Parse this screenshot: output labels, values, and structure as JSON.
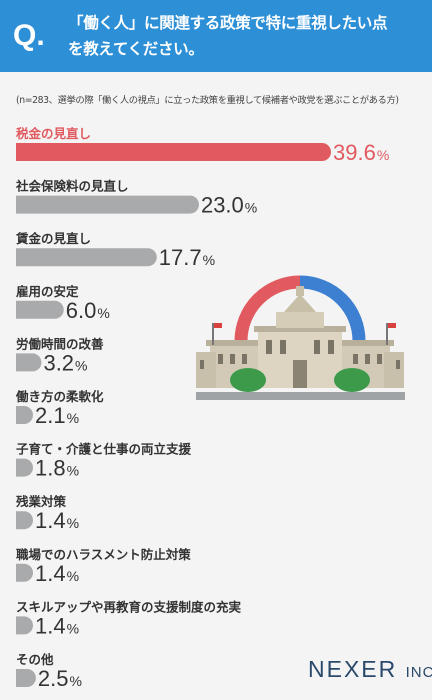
{
  "header": {
    "q_mark": "Q.",
    "question_line1": "「働く人」に関連する政策で特に重視したい点",
    "question_line2": "を教えてください。"
  },
  "note": "(n=283、選挙の際「働く人の視点」に立った政策を重視して候補者や政党を選ぶことがある方)",
  "logo": {
    "main": "NEXER",
    "suffix": "INC."
  },
  "colors": {
    "header": "#2d8fd6",
    "highlight": "#e05a5f",
    "bar": "#a9aaab",
    "highlight_text": "#e05a5f"
  },
  "chart_data": {
    "type": "bar",
    "orientation": "horizontal",
    "unit": "%",
    "xlim": [
      0,
      39.6
    ],
    "categories": [
      "税金の見直し",
      "社会保険料の見直し",
      "賃金の見直し",
      "雇用の安定",
      "労働時間の改善",
      "働き方の柔軟化",
      "子育て・介護と仕事の両立支援",
      "残業対策",
      "職場でのハラスメント防止対策",
      "スキルアップや再教育の支援制度の充実",
      "その他"
    ],
    "values": [
      39.6,
      23.0,
      17.7,
      6.0,
      3.2,
      2.1,
      1.8,
      1.4,
      1.4,
      1.4,
      2.5
    ],
    "labels": [
      "39.6",
      "23.0",
      "17.7",
      "6.0",
      "3.2",
      "2.1",
      "1.8",
      "1.4",
      "1.4",
      "1.4",
      "2.5"
    ],
    "highlight_index": 0
  }
}
